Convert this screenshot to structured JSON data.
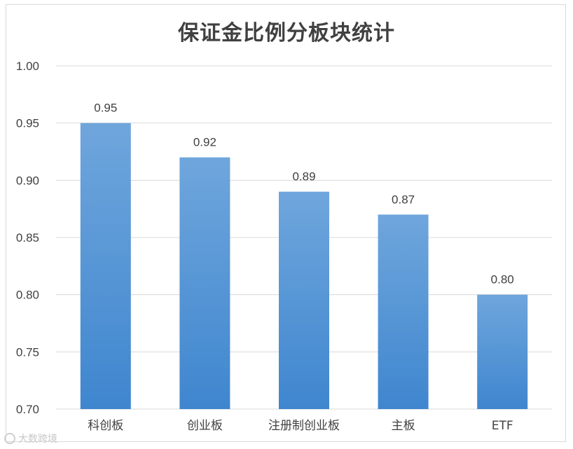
{
  "chart_data": {
    "type": "bar",
    "title": "保证金比例分板块统计",
    "categories": [
      "科创板",
      "创业板",
      "注册制创业板",
      "主板",
      "ETF"
    ],
    "values": [
      0.95,
      0.92,
      0.89,
      0.87,
      0.8
    ],
    "value_labels": [
      "0.95",
      "0.92",
      "0.89",
      "0.87",
      "0.80"
    ],
    "ylim": [
      0.7,
      1.0
    ],
    "yticks": [
      "0.70",
      "0.75",
      "0.80",
      "0.85",
      "0.90",
      "0.95",
      "1.00"
    ],
    "xlabel": "",
    "ylabel": "",
    "grid": true,
    "colors": {
      "bar_top": "#6fa6dc",
      "bar_bottom": "#3f86cf",
      "grid": "#d9d9d9",
      "text": "#404040"
    }
  },
  "watermark": {
    "text": "大数跨境"
  }
}
